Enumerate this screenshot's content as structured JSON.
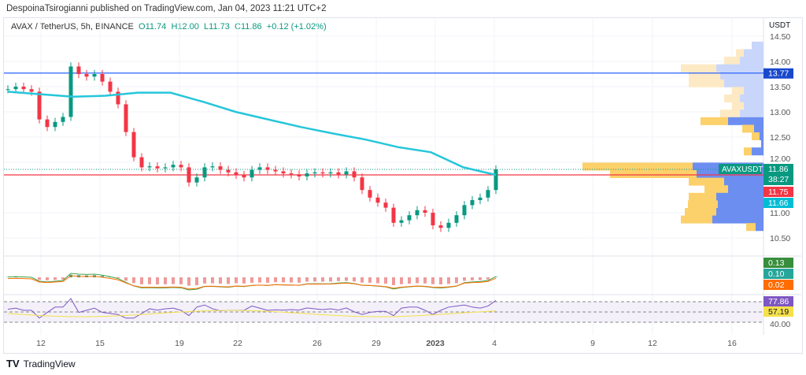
{
  "header": {
    "published": "DespoinaTsirogianni published on TradingView.com, Jan 04, 2023 11:21 UTC+2"
  },
  "legend": {
    "symbol": "AVAX / TetherUS, 5h, BINANCE",
    "open": "O11.74",
    "high": "H12.00",
    "low": "L11.73",
    "close": "C11.86",
    "change": "+0.12 (+1.02%)"
  },
  "footer": {
    "brand": "TradingView",
    "logo_icon": "tradingview-logo-icon"
  },
  "colors": {
    "up": "#089981",
    "down": "#f23645",
    "ema": "#26c6da",
    "hline": "#2962ff",
    "support": "#f23645",
    "rsi": "#7e57c2",
    "rsi_ma": "#f5e04b"
  },
  "chart_data": {
    "type": "candlestick",
    "currency": "USDT",
    "price_ticks": [
      "14.50",
      "14.00",
      "13.50",
      "13.00",
      "12.50",
      "12.00",
      "11.00",
      "10.50"
    ],
    "date_ticks": [
      "12",
      "15",
      "19",
      "22",
      "26",
      "29",
      "2023",
      "4",
      "9",
      "12",
      "16"
    ],
    "ylim": [
      10.3,
      14.6
    ],
    "closes": [
      13.45,
      13.5,
      13.45,
      13.4,
      12.85,
      12.7,
      12.8,
      12.9,
      13.9,
      13.75,
      13.7,
      13.75,
      13.6,
      13.4,
      13.15,
      12.6,
      12.1,
      11.9,
      11.92,
      11.88,
      11.9,
      11.95,
      11.9,
      11.6,
      11.7,
      11.9,
      11.92,
      11.85,
      11.8,
      11.75,
      11.7,
      11.85,
      11.9,
      11.85,
      11.82,
      11.78,
      11.76,
      11.72,
      11.78,
      11.8,
      11.78,
      11.8,
      11.76,
      11.82,
      11.7,
      11.45,
      11.3,
      11.2,
      11.1,
      10.8,
      10.85,
      10.95,
      11.05,
      11.0,
      10.75,
      10.7,
      10.8,
      10.95,
      11.15,
      11.25,
      11.3,
      11.45,
      11.86
    ],
    "ema": [
      13.4,
      13.35,
      13.3,
      13.32,
      13.38,
      13.38,
      13.2,
      13.0,
      12.85,
      12.7,
      12.57,
      12.45,
      12.3,
      12.2,
      11.9,
      11.75
    ],
    "horizontal_line": 13.77,
    "support_line": 11.75,
    "price_labels": [
      {
        "text": "13.77",
        "color": "#1848cc"
      },
      {
        "text": "AVAXUSDT",
        "color": "#089981"
      },
      {
        "text": "11.86",
        "color": "#089981"
      },
      {
        "text": "38:27",
        "color": "#089981"
      },
      {
        "text": "11.75",
        "color": "#f23645"
      },
      {
        "text": "11.66",
        "color": "#00bcd4"
      }
    ],
    "macd_labels": [
      {
        "text": "0.13",
        "color": "#388e3c"
      },
      {
        "text": "0.10",
        "color": "#26a69a"
      },
      {
        "text": "0.02",
        "color": "#ff6d00"
      }
    ],
    "rsi_labels": [
      {
        "text": "77.86",
        "color": "#7e57c2"
      },
      {
        "text": "57.19",
        "color": "#f5e04b"
      }
    ],
    "rsi_tick": "40.00",
    "volume_profile": [
      [
        14.3,
        0,
        0.15
      ],
      [
        14.15,
        0.1,
        0.25
      ],
      [
        14.0,
        0.2,
        0.3
      ],
      [
        13.85,
        0.45,
        0.6
      ],
      [
        13.7,
        0.4,
        0.55
      ],
      [
        13.55,
        0.45,
        0.5
      ],
      [
        13.4,
        0.15,
        0.25
      ],
      [
        13.25,
        0.2,
        0.3
      ],
      [
        13.1,
        0.15,
        0.25
      ],
      [
        12.95,
        0.25,
        0.3
      ],
      [
        12.8,
        0.35,
        0.45
      ],
      [
        12.65,
        0.15,
        0.12
      ],
      [
        12.5,
        0.1,
        0.05
      ],
      [
        12.35,
        0,
        0.03
      ],
      [
        12.2,
        0.1,
        0.15
      ],
      [
        11.9,
        1.4,
        0.9
      ],
      [
        11.75,
        1.1,
        0.85
      ],
      [
        11.6,
        0.45,
        0.5
      ],
      [
        11.45,
        0.3,
        0.45
      ],
      [
        11.3,
        0.35,
        0.6
      ],
      [
        11.15,
        0.38,
        0.58
      ],
      [
        11.0,
        0.4,
        0.6
      ],
      [
        10.85,
        0.4,
        0.65
      ],
      [
        10.7,
        0.12,
        0.1
      ]
    ]
  }
}
